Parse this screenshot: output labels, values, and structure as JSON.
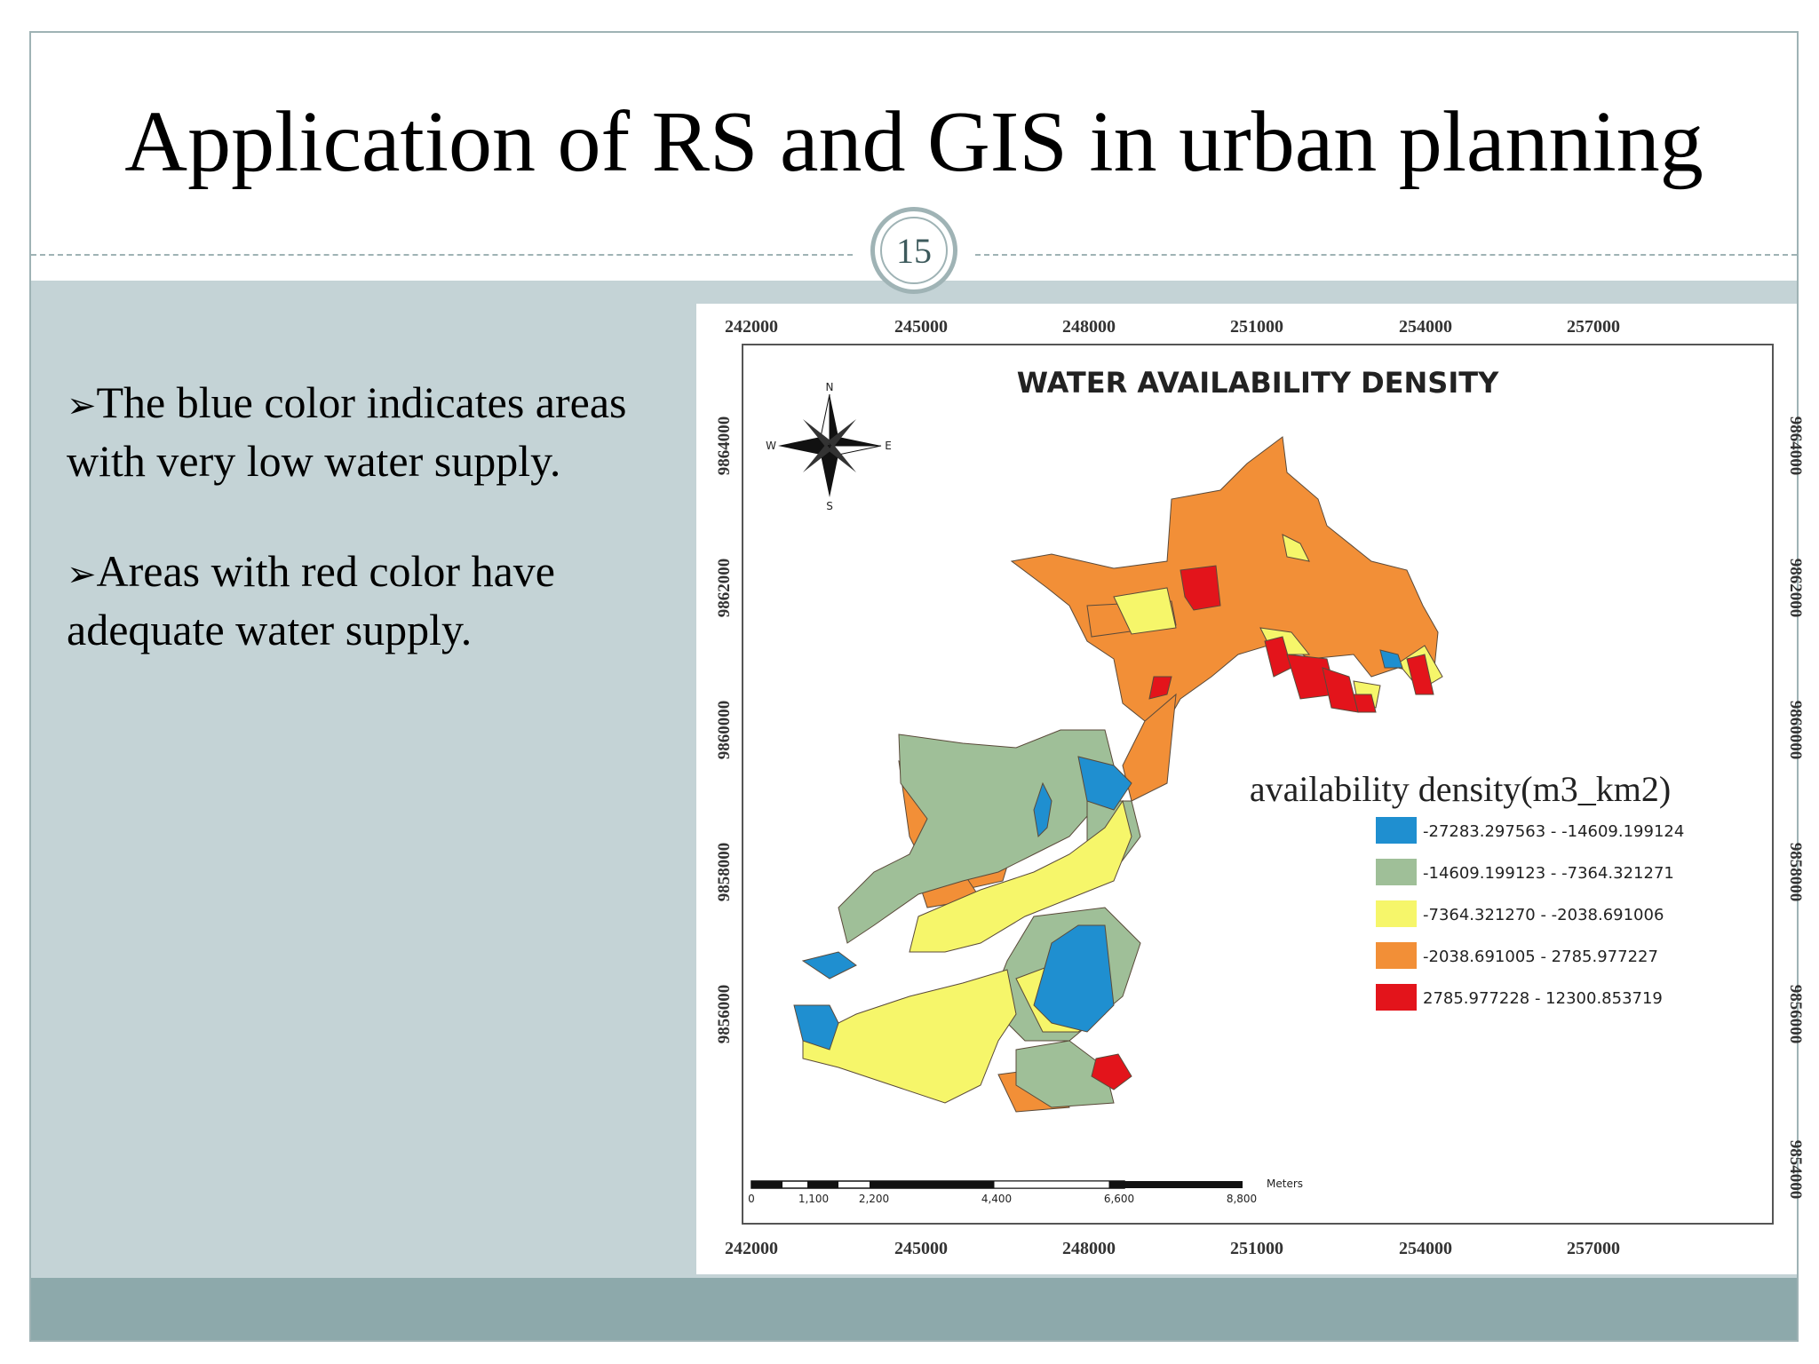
{
  "slide": {
    "title": "Application of RS and GIS in urban planning",
    "page_number": "15",
    "bullets": [
      {
        "marker": "➢",
        "text": "The blue color indicates areas with very low water supply."
      },
      {
        "marker": "➢",
        "text": "Areas with red color have adequate water supply."
      }
    ]
  },
  "map": {
    "title": "WATER AVAILABILITY DENSITY",
    "x_ticks": [
      "242000",
      "245000",
      "248000",
      "251000",
      "254000",
      "257000"
    ],
    "y_ticks": [
      "9864000",
      "9862000",
      "9860000",
      "9858000",
      "9856000",
      "9854000"
    ],
    "compass": {
      "n": "N",
      "s": "S",
      "e": "E",
      "w": "W"
    },
    "scalebar": {
      "labels": [
        "0",
        "1,100",
        "2,200",
        "4,400",
        "6,600",
        "8,800"
      ],
      "unit": "Meters"
    },
    "legend": {
      "title": "availability density(m3_km2)",
      "items": [
        {
          "label": "-27283.297563 - -14609.199124",
          "color": "#1f8fd0"
        },
        {
          "label": "-14609.199123 - -7364.321271",
          "color": "#9fbf98"
        },
        {
          "label": "-7364.321270 - -2038.691006",
          "color": "#f6f66a"
        },
        {
          "label": "-2038.691005 - 2785.977227",
          "color": "#f28f37"
        },
        {
          "label": "2785.977228 - 12300.853719",
          "color": "#e3141b"
        }
      ]
    }
  }
}
